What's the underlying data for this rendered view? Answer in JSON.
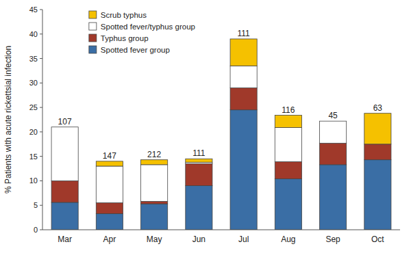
{
  "chart_data": {
    "type": "bar",
    "stacked": true,
    "categories": [
      "Mar",
      "Apr",
      "May",
      "Jun",
      "Jul",
      "Aug",
      "Sep",
      "Oct"
    ],
    "series": [
      {
        "name": "Spotted fever group",
        "color": "#3A6EA5",
        "values": [
          5.6,
          3.3,
          5.3,
          9.0,
          24.5,
          10.4,
          13.3,
          14.3
        ]
      },
      {
        "name": "Typhus group",
        "color": "#A0392A",
        "values": [
          4.4,
          2.2,
          0.5,
          4.5,
          4.5,
          3.5,
          4.4,
          3.2
        ]
      },
      {
        "name": "Spotted fever/typhus group",
        "color": "#FFFFFF",
        "values": [
          11.0,
          7.5,
          7.5,
          0.3,
          4.5,
          7.0,
          4.5,
          0.0
        ]
      },
      {
        "name": "Scrub typhus",
        "color": "#F5C100",
        "values": [
          0.0,
          1.0,
          1.0,
          0.7,
          5.5,
          2.5,
          0.0,
          6.3
        ]
      }
    ],
    "annotations": [
      "107",
      "147",
      "212",
      "111",
      "111",
      "116",
      "45",
      "63"
    ],
    "ylabel": "% Patients with acute rickettsial infection",
    "ylim": [
      0,
      45
    ],
    "yticks": [
      0,
      5,
      10,
      15,
      20,
      25,
      30,
      35,
      40,
      45
    ],
    "grid": false,
    "legend": "upper left"
  }
}
